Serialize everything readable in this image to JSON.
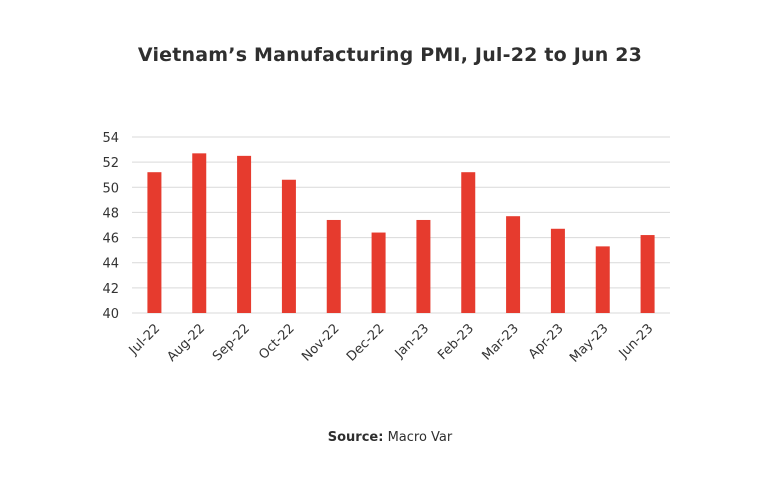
{
  "chart_data": {
    "type": "bar",
    "title": "Vietnam’s Manufacturing PMI, Jul-22 to Jun 23",
    "xlabel": "",
    "ylabel": "",
    "categories": [
      "Jul-22",
      "Aug-22",
      "Sep-22",
      "Oct-22",
      "Nov-22",
      "Dec-22",
      "Jan-23",
      "Feb-23",
      "Mar-23",
      "Apr-23",
      "May-23",
      "Jun-23"
    ],
    "values": [
      51.2,
      52.7,
      52.5,
      50.6,
      47.4,
      46.4,
      47.4,
      51.2,
      47.7,
      46.7,
      45.3,
      46.2
    ],
    "ylim": [
      40,
      54
    ],
    "yticks": [
      40,
      42,
      44,
      46,
      48,
      50,
      52,
      54
    ],
    "grid": true,
    "bar_color": "#e63b2e",
    "grid_color": "#d9d9d9"
  },
  "footer": {
    "source_label": "Source:",
    "source_value": " Macro Var"
  }
}
